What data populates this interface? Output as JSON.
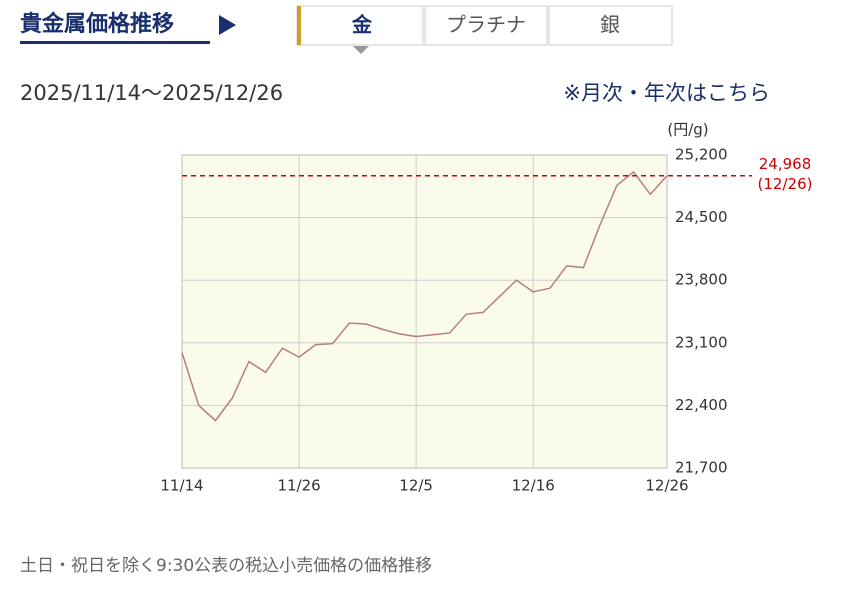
{
  "header": {
    "title": "貴金属価格推移"
  },
  "tabs": {
    "items": [
      "金",
      "プラチナ",
      "銀"
    ],
    "active": 0
  },
  "link": "※月次・年次はこちら",
  "chart_data": {
    "type": "line",
    "subtitle": "2025/11/14〜2025/12/26",
    "y_label": "(円/g)",
    "note": "土日・祝日を除く9:30公表の税込小売価格の価格推移",
    "categories": [
      "11/14",
      null,
      null,
      null,
      null,
      null,
      null,
      "11/26",
      null,
      null,
      null,
      null,
      null,
      null,
      "12/5",
      null,
      null,
      null,
      null,
      null,
      null,
      "12/16",
      null,
      null,
      null,
      null,
      null,
      null,
      null,
      "12/26"
    ],
    "series": [
      {
        "color": "#b5807a",
        "values": [
          22990,
          22400,
          22230,
          22480,
          22890,
          22770,
          23040,
          22940,
          23080,
          23090,
          23320,
          23310,
          23250,
          23200,
          23170,
          23190,
          23210,
          23420,
          23440,
          23620,
          23800,
          23670,
          23710,
          23960,
          23940,
          24420,
          24860,
          25010,
          24760,
          24968
        ]
      }
    ],
    "ylim": [
      21700,
      25200
    ],
    "yticks": [
      {
        "value": 21700,
        "label": "21,700"
      },
      {
        "value": 22400,
        "label": "22,400"
      },
      {
        "value": 23100,
        "label": "23,100"
      },
      {
        "value": 23800,
        "label": "23,800"
      },
      {
        "value": 24500,
        "label": "24,500"
      },
      {
        "value": 25200,
        "label": "25,200"
      }
    ],
    "grid": true,
    "reference_line": {
      "value": 24968,
      "label": "24,968",
      "sublabel": "(12/26)",
      "color": "#cc0000"
    }
  }
}
